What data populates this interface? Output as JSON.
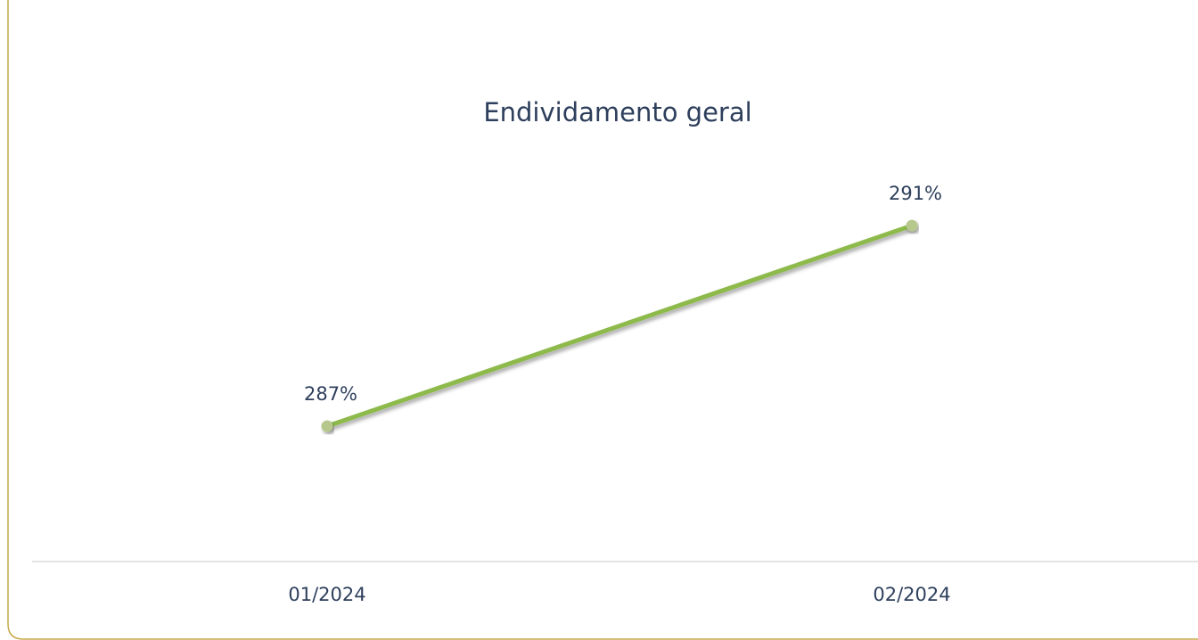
{
  "chart_data": {
    "type": "line",
    "title": "Endividamento geral",
    "categories": [
      "01/2024",
      "02/2024"
    ],
    "series": [
      {
        "name": "Endividamento geral",
        "color": "#8dba4c",
        "marker_color": "#b6c88c",
        "values": [
          287,
          291
        ],
        "value_labels": [
          "287%",
          "291%"
        ]
      }
    ],
    "ylim": [
      284.3,
      292.3
    ]
  }
}
